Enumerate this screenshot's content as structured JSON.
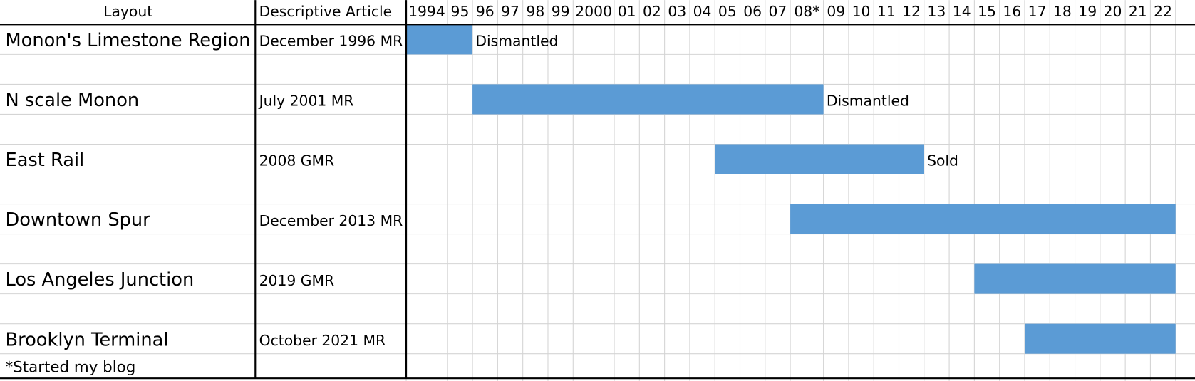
{
  "header": {
    "layout": "Layout",
    "article": "Descriptive Article"
  },
  "columns": [
    {
      "value": 1994,
      "label": "1994"
    },
    {
      "value": 1995,
      "label": "95"
    },
    {
      "value": 1996,
      "label": "96"
    },
    {
      "value": 1997,
      "label": "97"
    },
    {
      "value": 1998,
      "label": "98"
    },
    {
      "value": 1999,
      "label": "99"
    },
    {
      "value": 2000,
      "label": "2000"
    },
    {
      "value": 2001,
      "label": "01"
    },
    {
      "value": 2002,
      "label": "02"
    },
    {
      "value": 2003,
      "label": "03"
    },
    {
      "value": 2004,
      "label": "04"
    },
    {
      "value": 2005,
      "label": "05"
    },
    {
      "value": 2006,
      "label": "06"
    },
    {
      "value": 2007,
      "label": "07"
    },
    {
      "value": 2008,
      "label": "08*"
    },
    {
      "value": 2009,
      "label": "09"
    },
    {
      "value": 2010,
      "label": "10"
    },
    {
      "value": 2011,
      "label": "11"
    },
    {
      "value": 2012,
      "label": "12"
    },
    {
      "value": 2013,
      "label": "13"
    },
    {
      "value": 2014,
      "label": "14"
    },
    {
      "value": 2015,
      "label": "15"
    },
    {
      "value": 2016,
      "label": "16"
    },
    {
      "value": 2017,
      "label": "17"
    },
    {
      "value": 2018,
      "label": "18"
    },
    {
      "value": 2019,
      "label": "19"
    },
    {
      "value": 2020,
      "label": "20"
    },
    {
      "value": 2021,
      "label": "21"
    },
    {
      "value": 2022,
      "label": "22"
    }
  ],
  "rows": [
    {
      "layout": "Monon's Limestone Region",
      "article": "December 1996 MR",
      "start": 1994,
      "end": 1995,
      "note": "Dismantled"
    },
    {
      "layout": "N scale Monon",
      "article": "July 2001 MR",
      "start": 1996,
      "end": 2008,
      "note": "Dismantled"
    },
    {
      "layout": "East Rail",
      "article": "2008 GMR",
      "start": 2005,
      "end": 2012,
      "note": "Sold"
    },
    {
      "layout": "Downtown Spur",
      "article": "December 2013 MR",
      "start": 2008,
      "end": 2022
    },
    {
      "layout": "Los Angeles Junction",
      "article": "2019 GMR",
      "start": 2015,
      "end": 2022
    },
    {
      "layout": "Brooklyn Terminal",
      "article": "October 2021 MR",
      "start": 2017,
      "end": 2022
    }
  ],
  "footnote": "*Started my blog",
  "bar_color": "#5b9bd5"
}
